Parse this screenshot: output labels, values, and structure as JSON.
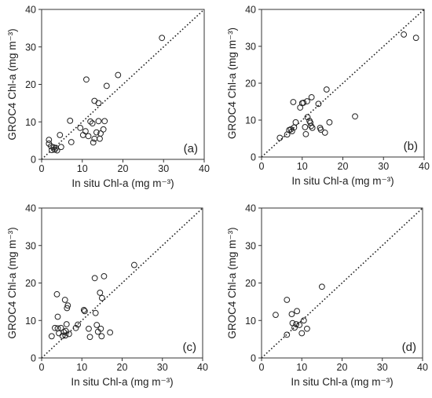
{
  "chart_data": [
    {
      "type": "scatter",
      "panel_label": "(a)",
      "xlabel": "In situ Chl-a (mg m⁻³)",
      "ylabel": "GROC4 Chl-a (mg m⁻³)",
      "xlim": [
        0,
        40
      ],
      "ylim": [
        0,
        40
      ],
      "xticks": [
        0,
        10,
        20,
        30,
        40
      ],
      "yticks": [
        0,
        10,
        20,
        30,
        40
      ],
      "reference_line": "1:1 dotted",
      "grid": false,
      "points": [
        [
          1.8,
          5.2
        ],
        [
          1.8,
          4.2
        ],
        [
          2.3,
          3.5
        ],
        [
          2.5,
          2.5
        ],
        [
          3.0,
          3.2
        ],
        [
          3.2,
          2.6
        ],
        [
          3.5,
          3.0
        ],
        [
          3.8,
          2.4
        ],
        [
          4.5,
          6.5
        ],
        [
          4.8,
          3.3
        ],
        [
          7.0,
          10.3
        ],
        [
          7.3,
          4.6
        ],
        [
          9.5,
          8.4
        ],
        [
          10.2,
          6.5
        ],
        [
          10.8,
          7.5
        ],
        [
          11.0,
          21.3
        ],
        [
          11.5,
          6.2
        ],
        [
          12.0,
          10.1
        ],
        [
          12.5,
          9.6
        ],
        [
          12.7,
          4.5
        ],
        [
          13.0,
          5.5
        ],
        [
          13.0,
          15.6
        ],
        [
          13.5,
          7.2
        ],
        [
          14.0,
          15.0
        ],
        [
          14.0,
          10.2
        ],
        [
          14.3,
          5.5
        ],
        [
          14.5,
          6.9
        ],
        [
          15.2,
          8.0
        ],
        [
          15.5,
          10.2
        ],
        [
          16.0,
          19.6
        ],
        [
          18.8,
          22.5
        ],
        [
          29.6,
          32.4
        ]
      ]
    },
    {
      "type": "scatter",
      "panel_label": "(b)",
      "xlabel": "In situ Chl-a (mg m⁻³)",
      "ylabel": "GROC4 Chl-a (mg m⁻³)",
      "xlim": [
        0,
        40
      ],
      "ylim": [
        0,
        40
      ],
      "xticks": [
        0,
        10,
        20,
        30,
        40
      ],
      "yticks": [
        0,
        10,
        20,
        30,
        40
      ],
      "reference_line": "1:1 dotted",
      "grid": false,
      "points": [
        [
          4.5,
          5.2
        ],
        [
          6.3,
          6.1
        ],
        [
          6.8,
          7.3
        ],
        [
          7.2,
          7.5
        ],
        [
          7.5,
          7.0
        ],
        [
          7.8,
          14.9
        ],
        [
          8.0,
          8.0
        ],
        [
          8.4,
          9.4
        ],
        [
          9.5,
          13.4
        ],
        [
          10.0,
          14.6
        ],
        [
          10.3,
          14.7
        ],
        [
          10.7,
          8.1
        ],
        [
          10.9,
          6.2
        ],
        [
          11.2,
          15.1
        ],
        [
          11.3,
          10.8
        ],
        [
          11.8,
          9.8
        ],
        [
          12.0,
          9.3
        ],
        [
          12.2,
          8.4
        ],
        [
          12.3,
          16.2
        ],
        [
          12.5,
          7.9
        ],
        [
          14.0,
          14.4
        ],
        [
          14.4,
          7.9
        ],
        [
          14.6,
          7.4
        ],
        [
          15.6,
          6.6
        ],
        [
          16.0,
          18.3
        ],
        [
          16.7,
          9.4
        ],
        [
          23.0,
          11.0
        ],
        [
          35.0,
          33.2
        ],
        [
          38.0,
          32.3
        ]
      ]
    },
    {
      "type": "scatter",
      "panel_label": "(c)",
      "xlabel": "In situ Chl-a (mg m⁻³)",
      "ylabel": "GROC4 Chl-a (mg m⁻³)",
      "xlim": [
        0,
        40
      ],
      "ylim": [
        0,
        40
      ],
      "xticks": [
        0,
        10,
        20,
        30,
        40
      ],
      "yticks": [
        0,
        10,
        20,
        30,
        40
      ],
      "reference_line": "1:1 dotted",
      "grid": false,
      "points": [
        [
          2.5,
          5.8
        ],
        [
          3.3,
          8.0
        ],
        [
          3.8,
          17.0
        ],
        [
          4.0,
          11.0
        ],
        [
          4.0,
          7.9
        ],
        [
          4.3,
          6.6
        ],
        [
          4.8,
          8.0
        ],
        [
          5.2,
          5.9
        ],
        [
          5.5,
          6.9
        ],
        [
          5.8,
          15.5
        ],
        [
          5.9,
          6.0
        ],
        [
          6.0,
          7.2
        ],
        [
          6.2,
          9.0
        ],
        [
          6.3,
          13.3
        ],
        [
          6.5,
          14.0
        ],
        [
          6.8,
          6.4
        ],
        [
          8.5,
          8.0
        ],
        [
          9.0,
          8.9
        ],
        [
          10.5,
          12.8
        ],
        [
          10.7,
          12.5
        ],
        [
          11.7,
          7.8
        ],
        [
          12.0,
          5.6
        ],
        [
          13.2,
          21.3
        ],
        [
          13.4,
          12.0
        ],
        [
          13.7,
          8.8
        ],
        [
          14.0,
          7.0
        ],
        [
          14.5,
          17.4
        ],
        [
          14.7,
          7.8
        ],
        [
          14.9,
          5.8
        ],
        [
          15.0,
          16.0
        ],
        [
          15.5,
          21.8
        ],
        [
          17.0,
          6.8
        ],
        [
          23.0,
          24.8
        ]
      ]
    },
    {
      "type": "scatter",
      "panel_label": "(d)",
      "xlabel": "In situ Chl-a (mg m⁻³)",
      "ylabel": "GROC4 Chl-a (mg m⁻³)",
      "xlim": [
        0,
        40
      ],
      "ylim": [
        0,
        40
      ],
      "xticks": [
        0,
        10,
        20,
        30,
        40
      ],
      "yticks": [
        0,
        10,
        20,
        30,
        40
      ],
      "reference_line": "1:1 dotted",
      "grid": false,
      "points": [
        [
          3.5,
          11.5
        ],
        [
          6.3,
          15.5
        ],
        [
          6.3,
          6.2
        ],
        [
          7.5,
          11.7
        ],
        [
          7.7,
          9.3
        ],
        [
          8.2,
          8.1
        ],
        [
          8.6,
          9.0
        ],
        [
          8.8,
          12.5
        ],
        [
          9.4,
          8.8
        ],
        [
          10.0,
          6.6
        ],
        [
          10.5,
          10.0
        ],
        [
          11.3,
          7.8
        ],
        [
          15.0,
          19.0
        ]
      ]
    }
  ]
}
